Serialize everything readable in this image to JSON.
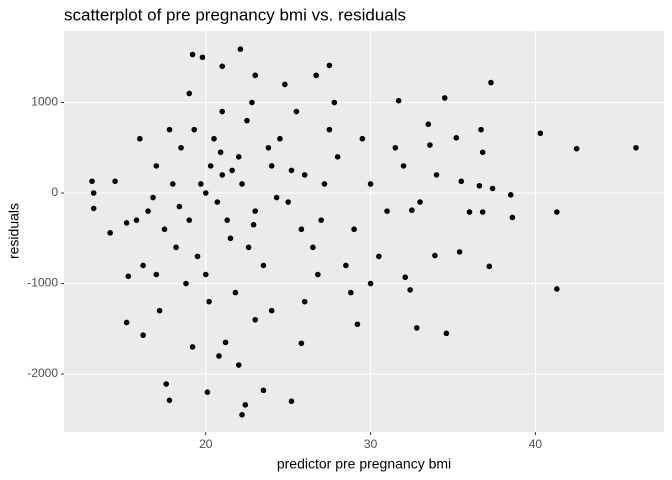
{
  "chart_data": {
    "type": "scatter",
    "title": "scatterplot of pre pregnancy bmi vs. residuals",
    "x_label": "predictor pre pregnancy bmi",
    "y_label": "residuals",
    "color": "#000000",
    "grid": true,
    "xlim": [
      11.4,
      47.8
    ],
    "ylim": [
      -2640,
      1790
    ],
    "xticks": [
      20,
      30,
      40
    ],
    "yticks": [
      -2000,
      -1000,
      0,
      1000
    ],
    "x": [
      13.1,
      13.2,
      13.2,
      14.2,
      14.5,
      15.2,
      15.2,
      15.3,
      16.2,
      17.6,
      17.8,
      19.2,
      22.1,
      22.4,
      22.2,
      25.2,
      23.5,
      20.1,
      27.5,
      26.7,
      31.7,
      34.5,
      37.3,
      40.3,
      42.5,
      46.1,
      41.3,
      41.3,
      37.2,
      32.8,
      34.6,
      29.2,
      35.4,
      38.5,
      38.6,
      36.8,
      36.0,
      35.5,
      36.6,
      37.4,
      35.2,
      36.7,
      36.8,
      33.5,
      33.6,
      32.5,
      32.1,
      32.4,
      33.9,
      25.8,
      20,
      21,
      19,
      22,
      18,
      23,
      20.5,
      19.5,
      21.5,
      22.5,
      17.5,
      24,
      25,
      18.5,
      20,
      21,
      19,
      23.5,
      24.5,
      26,
      27,
      16.5,
      17,
      20.2,
      21.8,
      22.8,
      18.8,
      26.5,
      28,
      29,
      30,
      31,
      32,
      27.5,
      28.5,
      25.5,
      16,
      16.2,
      17.2,
      23,
      24,
      19.2,
      20.8,
      21.2,
      22,
      26,
      24.8,
      23,
      21,
      19.8,
      20.3,
      20.7,
      19.7,
      21.3,
      22.2,
      18.2,
      17.8,
      25.8,
      27.2,
      29.5,
      30.5,
      33,
      34,
      31.5,
      30,
      28.8,
      27.8,
      26.8,
      23.8,
      22.6,
      19.3,
      18.4,
      20.9,
      21.6,
      22.9,
      24.3,
      25.2,
      17,
      15.8,
      16.8
    ],
    "y": [
      130,
      0,
      -170,
      -440,
      130,
      -330,
      -1430,
      -920,
      -1570,
      -2110,
      -2290,
      1530,
      1590,
      -2340,
      -2450,
      -2300,
      -2180,
      -2200,
      1410,
      1300,
      1020,
      1050,
      1220,
      660,
      490,
      500,
      -210,
      -1060,
      -810,
      -1490,
      -1550,
      -1450,
      -650,
      -20,
      -270,
      -210,
      -210,
      130,
      80,
      50,
      610,
      700,
      450,
      760,
      530,
      -190,
      -930,
      -1070,
      -690,
      -1660,
      0,
      200,
      -300,
      400,
      100,
      -200,
      600,
      -700,
      -500,
      800,
      -400,
      300,
      -100,
      500,
      -900,
      900,
      1100,
      -800,
      600,
      200,
      -300,
      -200,
      300,
      -1200,
      -1100,
      1000,
      -1000,
      -600,
      400,
      -400,
      100,
      -200,
      300,
      700,
      -800,
      900,
      600,
      -800,
      -1300,
      -1400,
      -1300,
      -1700,
      -1800,
      -1650,
      -1900,
      -1200,
      1200,
      1300,
      1400,
      1500,
      300,
      -100,
      100,
      -300,
      100,
      -600,
      700,
      -400,
      100,
      600,
      -700,
      -100,
      200,
      500,
      -1000,
      -1100,
      1000,
      -900,
      500,
      -600,
      700,
      -150,
      450,
      250,
      -350,
      -50,
      250,
      -900,
      -300,
      -50
    ]
  }
}
